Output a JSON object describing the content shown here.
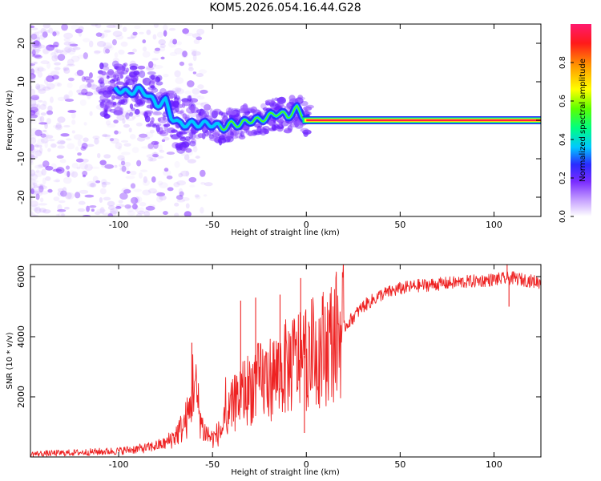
{
  "title": "KOM5.2026.054.16.44.G28",
  "chart_data": [
    {
      "type": "heatmap",
      "name": "spectrogram",
      "xlabel": "Height of straight line (km)",
      "ylabel": "Frequency (Hz)",
      "xlim": [
        -147,
        125
      ],
      "ylim": [
        -25,
        25
      ],
      "xticks": [
        -100,
        -50,
        0,
        50,
        100
      ],
      "yticks": [
        -20,
        -10,
        0,
        10,
        20
      ],
      "ridge": {
        "x": [
          -100,
          -95,
          -90,
          -85,
          -80,
          -75,
          -72,
          -68,
          -65,
          -60,
          -55,
          -50,
          -45,
          -40,
          -35,
          -30,
          -25,
          -20,
          -15,
          -10,
          -5,
          -3,
          0,
          5,
          50,
          100,
          122
        ],
        "y": [
          8,
          7,
          8,
          7,
          4,
          5,
          1,
          -1,
          -1,
          -1,
          -1,
          -1,
          -2,
          -1,
          -1,
          0,
          0,
          1,
          2,
          1,
          3,
          2,
          0,
          0,
          0,
          0,
          0
        ]
      },
      "colorbar": {
        "label": "Normalized spectral amplitude",
        "range": [
          0.0,
          1.0
        ],
        "ticks": [
          "0.0",
          "0.2",
          "0.4",
          "0.6",
          "0.8"
        ],
        "colors": [
          "#ffffff",
          "#c9a6ff",
          "#7a2cff",
          "#2a2bff",
          "#00c8ff",
          "#00ff80",
          "#5aff00",
          "#ffff00",
          "#ff9a00",
          "#ff1a1a",
          "#ff1a6e"
        ]
      }
    },
    {
      "type": "line",
      "name": "snr",
      "xlabel": "Height of straight line (km)",
      "ylabel": "SNR (10 * v/v)",
      "xlim": [
        -147,
        125
      ],
      "ylim": [
        0,
        6400
      ],
      "xticks": [
        -100,
        -50,
        0,
        50,
        100
      ],
      "yticks": [
        2000,
        4000,
        6000
      ],
      "color": "#ee2222",
      "envelope": {
        "x": [
          -147,
          -120,
          -100,
          -85,
          -75,
          -70,
          -66,
          -62,
          -60,
          -58,
          -55,
          -50,
          -45,
          -40,
          -35,
          -30,
          -25,
          -20,
          -15,
          -10,
          -5,
          0,
          5,
          10,
          20,
          30,
          40,
          50,
          60,
          80,
          100,
          110,
          125
        ],
        "y": [
          100,
          150,
          200,
          300,
          450,
          700,
          1000,
          1500,
          2700,
          1800,
          900,
          600,
          900,
          1600,
          2100,
          2300,
          2500,
          2600,
          2800,
          3000,
          3200,
          3400,
          3500,
          3700,
          4300,
          5000,
          5400,
          5600,
          5700,
          5800,
          5900,
          5950,
          5800
        ]
      },
      "spikes": [
        {
          "x": -61,
          "y": 3800
        },
        {
          "x": -35,
          "y": 5200
        },
        {
          "x": -27,
          "y": 5300
        },
        {
          "x": -14,
          "y": 5400
        },
        {
          "x": -3,
          "y": 5950
        },
        {
          "x": -1,
          "y": 800
        },
        {
          "x": 107,
          "y": 6400
        },
        {
          "x": 108,
          "y": 5000
        }
      ]
    }
  ]
}
